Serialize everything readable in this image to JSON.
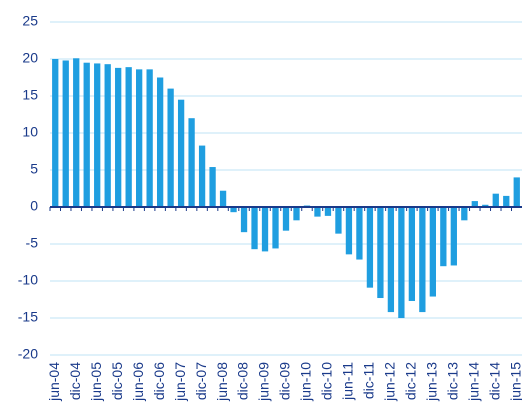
{
  "chart_data": {
    "type": "bar",
    "color": "#1f9ee0",
    "categories": [
      "jun-04",
      null,
      "dic-04",
      null,
      "jun-05",
      null,
      "dic-05",
      null,
      "jun-06",
      null,
      "dic-06",
      null,
      "jun-07",
      null,
      "dic-07",
      null,
      "jun-08",
      null,
      "dic-08",
      null,
      "jun-09",
      null,
      "dic-09",
      null,
      "jun-10",
      null,
      "dic-10",
      null,
      "jun-11",
      null,
      "dic-11",
      null,
      "jun-12",
      null,
      "dic-12",
      null,
      "jun-13",
      null,
      "dic-13",
      null,
      "jun-14",
      null,
      "dic-14",
      null,
      "jun-15"
    ],
    "values": [
      20,
      19.8,
      20.1,
      19.5,
      19.4,
      19.3,
      18.8,
      18.9,
      18.6,
      18.6,
      17.5,
      16.0,
      14.5,
      12.0,
      8.3,
      5.4,
      2.2,
      -0.7,
      -3.4,
      -5.7,
      -6.0,
      -5.6,
      -3.2,
      -1.8,
      0.2,
      -1.3,
      -1.2,
      -3.6,
      -6.4,
      -7.1,
      -10.9,
      -12.3,
      -14.2,
      -15.0,
      -12.7,
      -14.2,
      -12.1,
      -8.0,
      -7.9,
      -1.8,
      0.8,
      0.3,
      1.8,
      1.5,
      4.0
    ],
    "ylim": [
      -20,
      25
    ],
    "yticks": [
      -20,
      -15,
      -10,
      -5,
      0,
      5,
      10,
      15,
      20,
      25
    ],
    "grid": true
  }
}
